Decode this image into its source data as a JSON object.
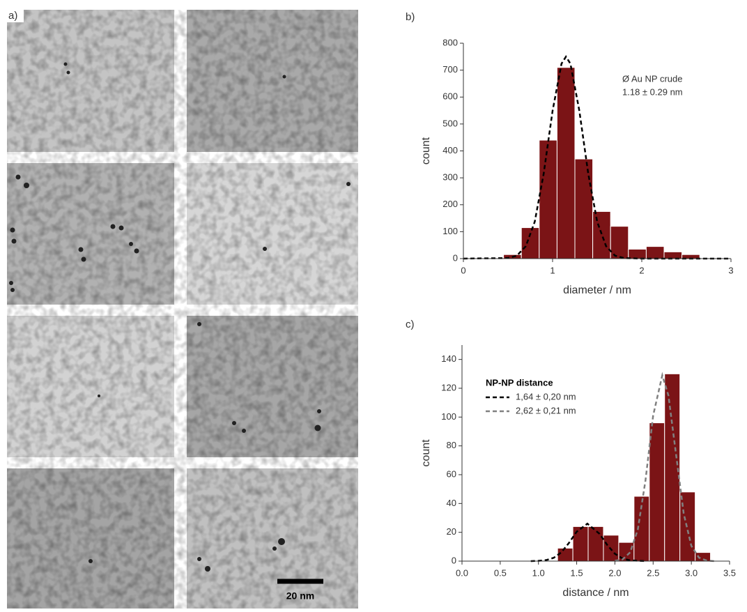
{
  "panel_labels": [
    "a)",
    "b)",
    "c)"
  ],
  "scale_bar": "20 nm",
  "chart_data": [
    {
      "type": "histogram",
      "x_label": "diameter / nm",
      "y_label": "count",
      "bins": [
        0.45,
        0.65,
        0.85,
        1.05,
        1.25,
        1.45,
        1.65,
        1.85,
        2.05,
        2.25,
        2.45,
        2.65
      ],
      "values": [
        15,
        115,
        440,
        710,
        370,
        175,
        120,
        35,
        45,
        25,
        15
      ],
      "color": "#7b1416",
      "xlim": [
        0,
        3
      ],
      "xticks": [
        0,
        1,
        2,
        3
      ],
      "ylim": [
        0,
        800
      ],
      "yticks": [
        0,
        100,
        200,
        300,
        400,
        500,
        600,
        700,
        800
      ],
      "fits": [
        {
          "color": "#000000",
          "x": [
            0,
            0.5,
            0.6,
            0.7,
            0.8,
            0.9,
            1.0,
            1.1,
            1.15,
            1.2,
            1.3,
            1.4,
            1.5,
            1.6,
            1.7,
            1.8,
            2.0,
            3.0
          ],
          "values": [
            0,
            2,
            11,
            46,
            137,
            315,
            549,
            724,
            750,
            724,
            549,
            315,
            137,
            46,
            11,
            2,
            0,
            0
          ]
        }
      ],
      "annotations": [
        "Ø Au NP crude",
        "1.18 ± 0.29 nm"
      ]
    },
    {
      "type": "histogram",
      "x_label": "distance / nm",
      "y_label": "count",
      "bins": [
        1.25,
        1.45,
        1.65,
        1.85,
        2.05,
        2.25,
        2.45,
        2.65,
        2.85,
        3.05,
        3.25
      ],
      "values": [
        9,
        24,
        24,
        18,
        13,
        45,
        96,
        130,
        48,
        6
      ],
      "color": "#7b1416",
      "xlim": [
        0,
        3.5
      ],
      "xticks": [
        {
          "value": 0,
          "label": "0.0"
        },
        0.5,
        {
          "value": 1,
          "label": "1.0"
        },
        1.5,
        {
          "value": 2,
          "label": "2.0"
        },
        2.5,
        {
          "value": 3,
          "label": "3.0"
        },
        3.5
      ],
      "ylim": [
        0,
        150
      ],
      "yticks": [
        0,
        20,
        40,
        60,
        80,
        100,
        120,
        140
      ],
      "legend_title": "NP-NP distance",
      "fits": [
        {
          "name": "1,64 ± 0,20 nm",
          "color": "#000000",
          "x": [
            0.9,
            1.0,
            1.1,
            1.2,
            1.3,
            1.4,
            1.5,
            1.64,
            1.8,
            1.9,
            2.0,
            2.1,
            2.2,
            2.4
          ],
          "values": [
            0,
            0.2,
            0.7,
            2.3,
            6.1,
            12.7,
            20.4,
            26,
            18.9,
            11.2,
            5.1,
            1.8,
            0.5,
            0
          ]
        },
        {
          "name": "2,62 ± 0,21 nm",
          "color": "#808080",
          "x": [
            2.0,
            2.1,
            2.2,
            2.3,
            2.4,
            2.5,
            2.62,
            2.7,
            2.8,
            2.9,
            3.0,
            3.1,
            3.2,
            3.3
          ],
          "values": [
            0.2,
            1.2,
            6.1,
            22,
            56,
            101,
            129,
            115,
            74,
            33,
            10.6,
            2.4,
            0.4,
            0
          ]
        }
      ]
    }
  ]
}
